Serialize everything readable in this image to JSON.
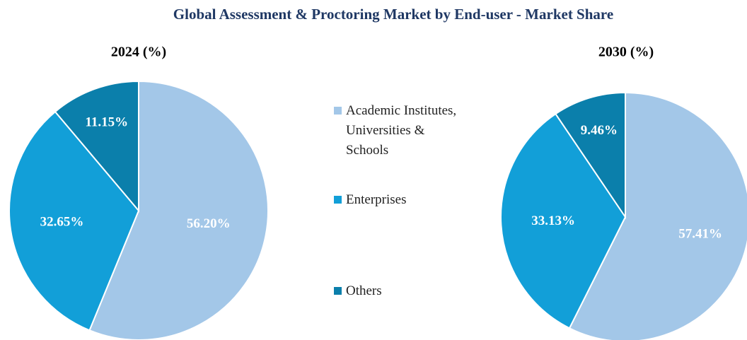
{
  "title": "Global Assessment & Proctoring Market by End-user - Market Share",
  "categories": [
    "Academic Institutes, Universities & Schools",
    "Enterprises",
    "Others"
  ],
  "colors": [
    "#a3c7e8",
    "#129fd8",
    "#0b7fab"
  ],
  "chart_data": [
    {
      "type": "pie",
      "title": "2024 (%)",
      "values": [
        56.2,
        32.65,
        11.15
      ],
      "value_labels": [
        "56.20%",
        "32.65%",
        "11.15%"
      ]
    },
    {
      "type": "pie",
      "title": "2030 (%)",
      "values": [
        57.41,
        33.13,
        9.46
      ],
      "value_labels": [
        "57.41%",
        "33.13%",
        "9.46%"
      ]
    }
  ]
}
